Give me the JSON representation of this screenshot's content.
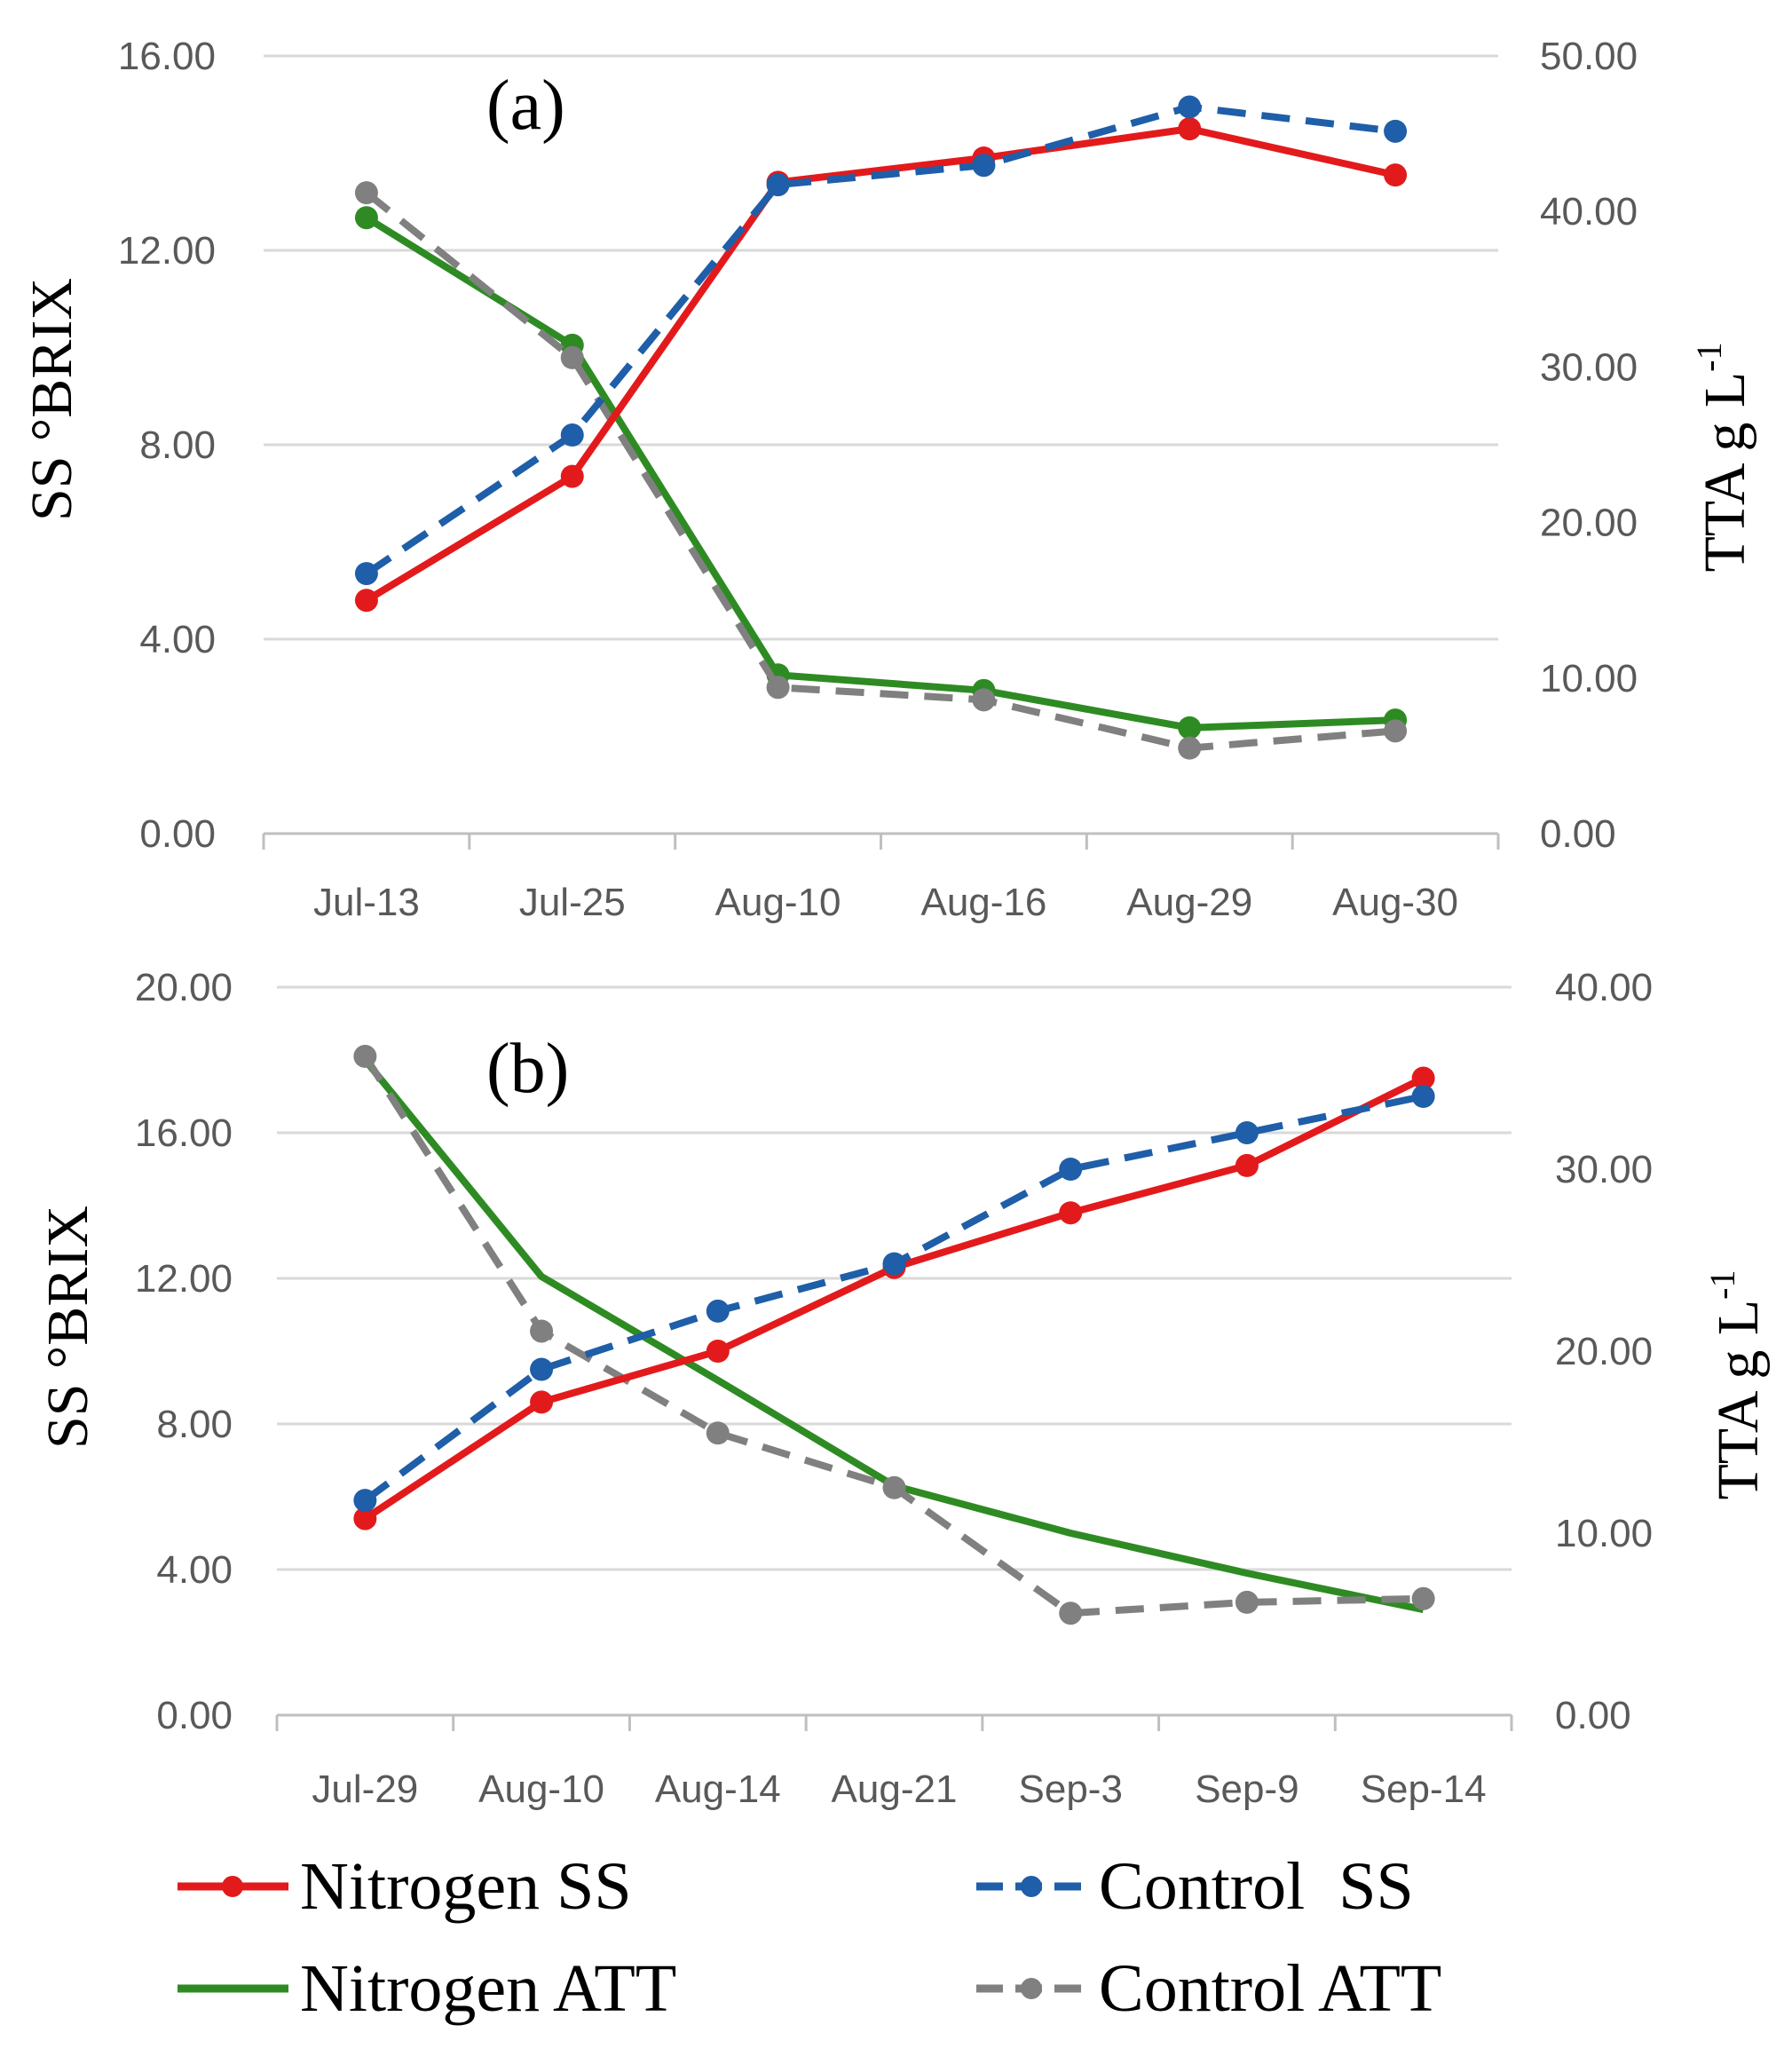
{
  "chart_data": [
    {
      "type": "line",
      "panel_label": "(a)",
      "categories": [
        "Jul-13",
        "Jul-25",
        "Aug-10",
        "Aug-16",
        "Aug-29",
        "Aug-30"
      ],
      "ylabel": "SS °BRIX",
      "y2label_main": "TTA g L",
      "y2label_sup": "-1",
      "ylim": [
        0,
        16
      ],
      "y_ticks": [
        "0.00",
        "4.00",
        "8.00",
        "12.00",
        "16.00"
      ],
      "y2lim": [
        0,
        50
      ],
      "y2_ticks": [
        "0.00",
        "10.00",
        "20.00",
        "30.00",
        "40.00",
        "50.00"
      ],
      "grid": true,
      "series": [
        {
          "name": "Nitrogen SS",
          "axis": "left",
          "color": "#e31a1c",
          "dashed": false,
          "markers": true,
          "values": [
            4.8,
            7.35,
            13.4,
            13.9,
            14.5,
            13.55
          ]
        },
        {
          "name": "Control SS",
          "axis": "left",
          "color": "#1f5ea8",
          "dashed": true,
          "markers": true,
          "values": [
            5.35,
            8.2,
            13.35,
            13.75,
            14.95,
            14.45
          ]
        },
        {
          "name": "Nitrogen ATT",
          "axis": "right",
          "color": "#2e8b23",
          "dashed": false,
          "markers": true,
          "values": [
            39.6,
            31.4,
            10.2,
            9.2,
            6.8,
            7.3
          ]
        },
        {
          "name": "Control ATT",
          "axis": "right",
          "color": "#808080",
          "dashed": true,
          "markers": true,
          "values": [
            41.2,
            30.6,
            9.4,
            8.6,
            5.5,
            6.6
          ]
        }
      ]
    },
    {
      "type": "line",
      "panel_label": "(b)",
      "categories": [
        "Jul-29",
        "Aug-10",
        "Aug-14",
        "Aug-21",
        "Sep-3",
        "Sep-9",
        "Sep-14"
      ],
      "ylabel": "SS °BRIX",
      "y2label_main": "TTA g L",
      "y2label_sup": "-1",
      "ylim": [
        0,
        20
      ],
      "y_ticks": [
        "0.00",
        "4.00",
        "8.00",
        "12.00",
        "16.00",
        "20.00"
      ],
      "y2lim": [
        0,
        40
      ],
      "y2_ticks": [
        "0.00",
        "10.00",
        "20.00",
        "30.00",
        "40.00"
      ],
      "grid": true,
      "series": [
        {
          "name": "Nitrogen SS",
          "axis": "left",
          "color": "#e31a1c",
          "dashed": false,
          "markers": true,
          "values": [
            5.4,
            8.6,
            10.0,
            12.3,
            13.8,
            15.1,
            17.5
          ]
        },
        {
          "name": "Control SS",
          "axis": "left",
          "color": "#1f5ea8",
          "dashed": true,
          "markers": true,
          "values": [
            5.9,
            9.5,
            11.1,
            12.4,
            15.0,
            16.0,
            17.0
          ]
        },
        {
          "name": "Nitrogen ATT",
          "axis": "right",
          "color": "#2e8b23",
          "dashed": false,
          "markers": false,
          "values": [
            36.0,
            24.1,
            18.4,
            12.6,
            10.0,
            7.8,
            5.8
          ]
        },
        {
          "name": "Control ATT",
          "axis": "right",
          "color": "#808080",
          "dashed": true,
          "markers": true,
          "values": [
            36.2,
            21.1,
            15.5,
            12.5,
            5.6,
            6.2,
            6.4
          ]
        }
      ]
    }
  ],
  "legend": {
    "items": [
      {
        "label": "Nitrogen SS",
        "color": "#e31a1c",
        "dashed": false,
        "marker": true
      },
      {
        "label": "Control  SS",
        "color": "#1f5ea8",
        "dashed": true,
        "marker": true
      },
      {
        "label": "Nitrogen ATT",
        "color": "#2e8b23",
        "dashed": false,
        "marker": false
      },
      {
        "label": "Control ATT",
        "color": "#808080",
        "dashed": true,
        "marker": true
      }
    ]
  }
}
